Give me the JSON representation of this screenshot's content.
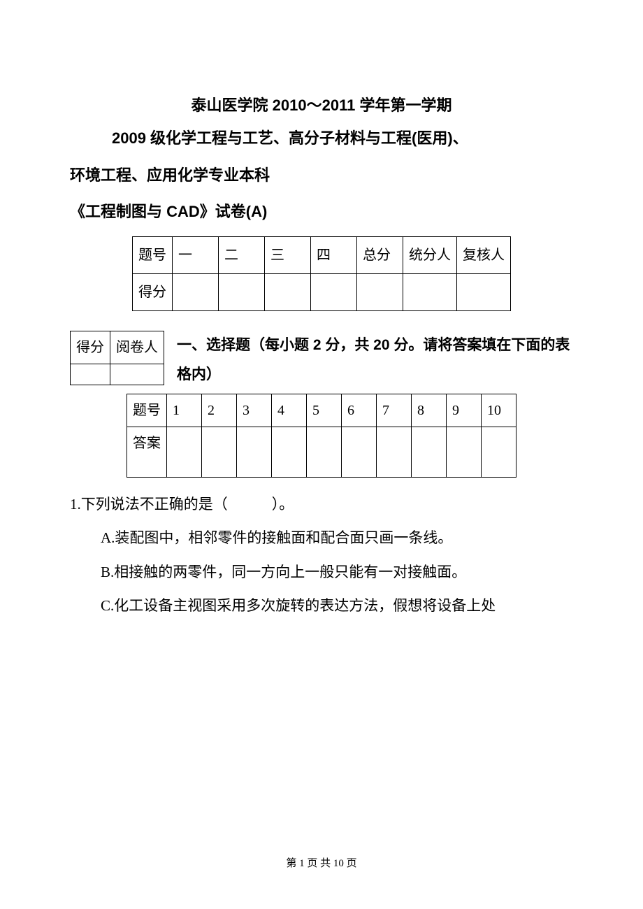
{
  "header": {
    "title": "泰山医学院 2010～2011 学年第一学期",
    "subtitle_l1": "2009 级化学工程与工艺、高分子材料与工程(医用)、",
    "subtitle_l2": "环境工程、应用化学专业本科",
    "subtitle_l3": "《工程制图与 CAD》试卷(A)"
  },
  "score_table": {
    "row1": [
      "题号",
      "一",
      "二",
      "三",
      "四",
      "总分",
      "统分人",
      "复核人"
    ],
    "row2_label": "得分"
  },
  "section1": {
    "mini_headers": [
      "得分",
      "阅卷人"
    ],
    "title": "一、选择题（每小题 2 分，共 20 分。请将答案填在下面的表格内）"
  },
  "answer_table": {
    "label_q": "题号",
    "label_a": "答案",
    "nums": [
      "1",
      "2",
      "3",
      "4",
      "5",
      "6",
      "7",
      "8",
      "9",
      "10"
    ]
  },
  "q1": {
    "stem": "1.下列说法不正确的是（　　　）。",
    "optA": "A.装配图中，相邻零件的接触面和配合面只画一条线。",
    "optB": "B.相接触的两零件，同一方向上一般只能有一对接触面。",
    "optC": "C.化工设备主视图采用多次旋转的表达方法，假想将设备上处"
  },
  "footer": "第 1 页 共 10 页"
}
